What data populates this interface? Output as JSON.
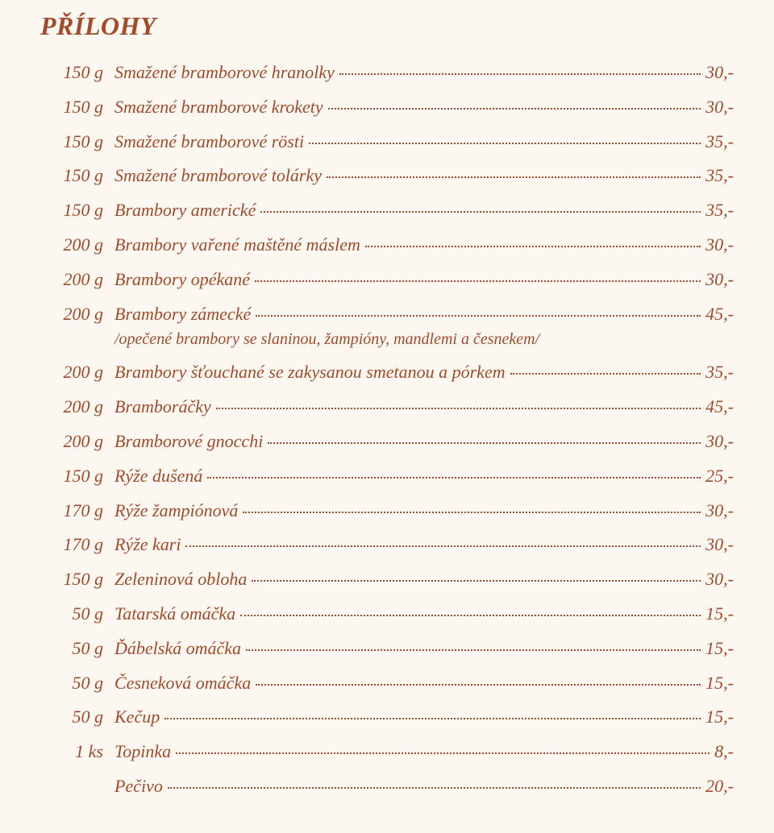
{
  "heading": "PŘÍLOHY",
  "items": [
    {
      "qty": "150 g",
      "name": "Smažené bramborové hranolky",
      "price": "30,-"
    },
    {
      "qty": "150 g",
      "name": "Smažené bramborové krokety",
      "price": "30,-"
    },
    {
      "qty": "150 g",
      "name": "Smažené bramborové rösti",
      "price": "35,-"
    },
    {
      "qty": "150 g",
      "name": "Smažené bramborové tolárky",
      "price": "35,-"
    },
    {
      "qty": "150 g",
      "name": "Brambory americké",
      "price": "35,-"
    },
    {
      "qty": "200 g",
      "name": "Brambory vařené maštěné máslem",
      "price": "30,-"
    },
    {
      "qty": "200 g",
      "name": "Brambory opékané",
      "price": "30,-"
    },
    {
      "qty": "200 g",
      "name": "Brambory zámecké",
      "price": "45,-",
      "note": "/opečené brambory se slaninou, žampióny, mandlemi a česnekem/"
    },
    {
      "qty": "200 g",
      "name": "Brambory šťouchané se zakysanou smetanou a pórkem",
      "price": "35,-"
    },
    {
      "qty": "200 g",
      "name": "Bramboráčky",
      "price": "45,-"
    },
    {
      "qty": "200 g",
      "name": "Bramborové gnocchi",
      "price": "30,-"
    },
    {
      "qty": "150 g",
      "name": "Rýže dušená",
      "price": "25,-"
    },
    {
      "qty": "170 g",
      "name": "Rýže žampiónová",
      "price": "30,-"
    },
    {
      "qty": "170 g",
      "name": "Rýže kari",
      "price": "30,-"
    },
    {
      "qty": "150 g",
      "name": "Zeleninová obloha",
      "price": "30,-"
    },
    {
      "qty": "50 g",
      "name": "Tatarská omáčka",
      "price": "15,-"
    },
    {
      "qty": "50 g",
      "name": "Ďábelská omáčka",
      "price": "15,-"
    },
    {
      "qty": "50 g",
      "name": "Česneková omáčka",
      "price": "15,-"
    },
    {
      "qty": "50 g",
      "name": "Kečup",
      "price": "15,-"
    },
    {
      "qty": "1 ks",
      "name": "Topinka",
      "price": " 8,-"
    },
    {
      "qty": "",
      "name": "Pečivo",
      "price": "20,-"
    }
  ]
}
